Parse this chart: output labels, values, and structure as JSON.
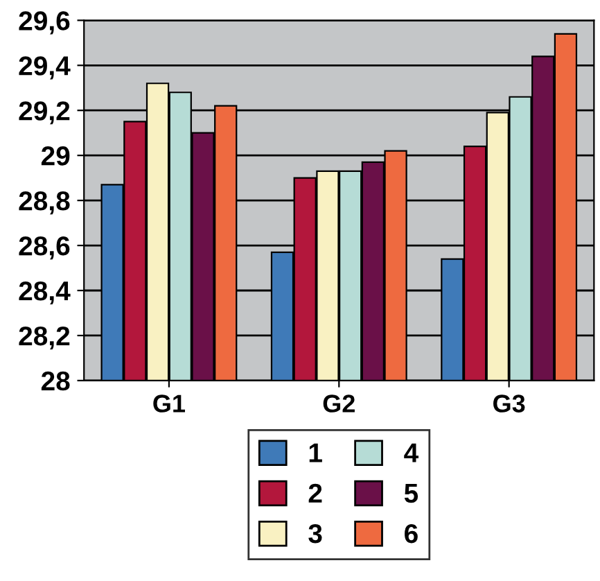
{
  "chart_data": {
    "type": "bar",
    "categories": [
      "G1",
      "G2",
      "G3"
    ],
    "series": [
      {
        "name": "1",
        "color": "#3f7ab8",
        "values": [
          28.87,
          28.57,
          28.54
        ]
      },
      {
        "name": "2",
        "color": "#b3173c",
        "values": [
          29.15,
          28.9,
          29.04
        ]
      },
      {
        "name": "3",
        "color": "#f9f1c2",
        "values": [
          29.32,
          28.93,
          29.19
        ]
      },
      {
        "name": "4",
        "color": "#b6dcd6",
        "values": [
          29.28,
          28.93,
          29.26
        ]
      },
      {
        "name": "5",
        "color": "#6a1048",
        "values": [
          29.1,
          28.97,
          29.44
        ]
      },
      {
        "name": "6",
        "color": "#ee6a40",
        "values": [
          29.22,
          29.02,
          29.54
        ]
      }
    ],
    "ylim": [
      28,
      29.6
    ],
    "yticks": [
      {
        "value": 28,
        "label": "28"
      },
      {
        "value": 28.2,
        "label": "28,2"
      },
      {
        "value": 28.4,
        "label": "28,4"
      },
      {
        "value": 28.6,
        "label": "28,6"
      },
      {
        "value": 28.8,
        "label": "28,8"
      },
      {
        "value": 29,
        "label": "29"
      },
      {
        "value": 29.2,
        "label": "29,2"
      },
      {
        "value": 29.4,
        "label": "29,4"
      },
      {
        "value": 29.6,
        "label": "29,6"
      }
    ],
    "grid": "y",
    "legend": "bottom"
  }
}
